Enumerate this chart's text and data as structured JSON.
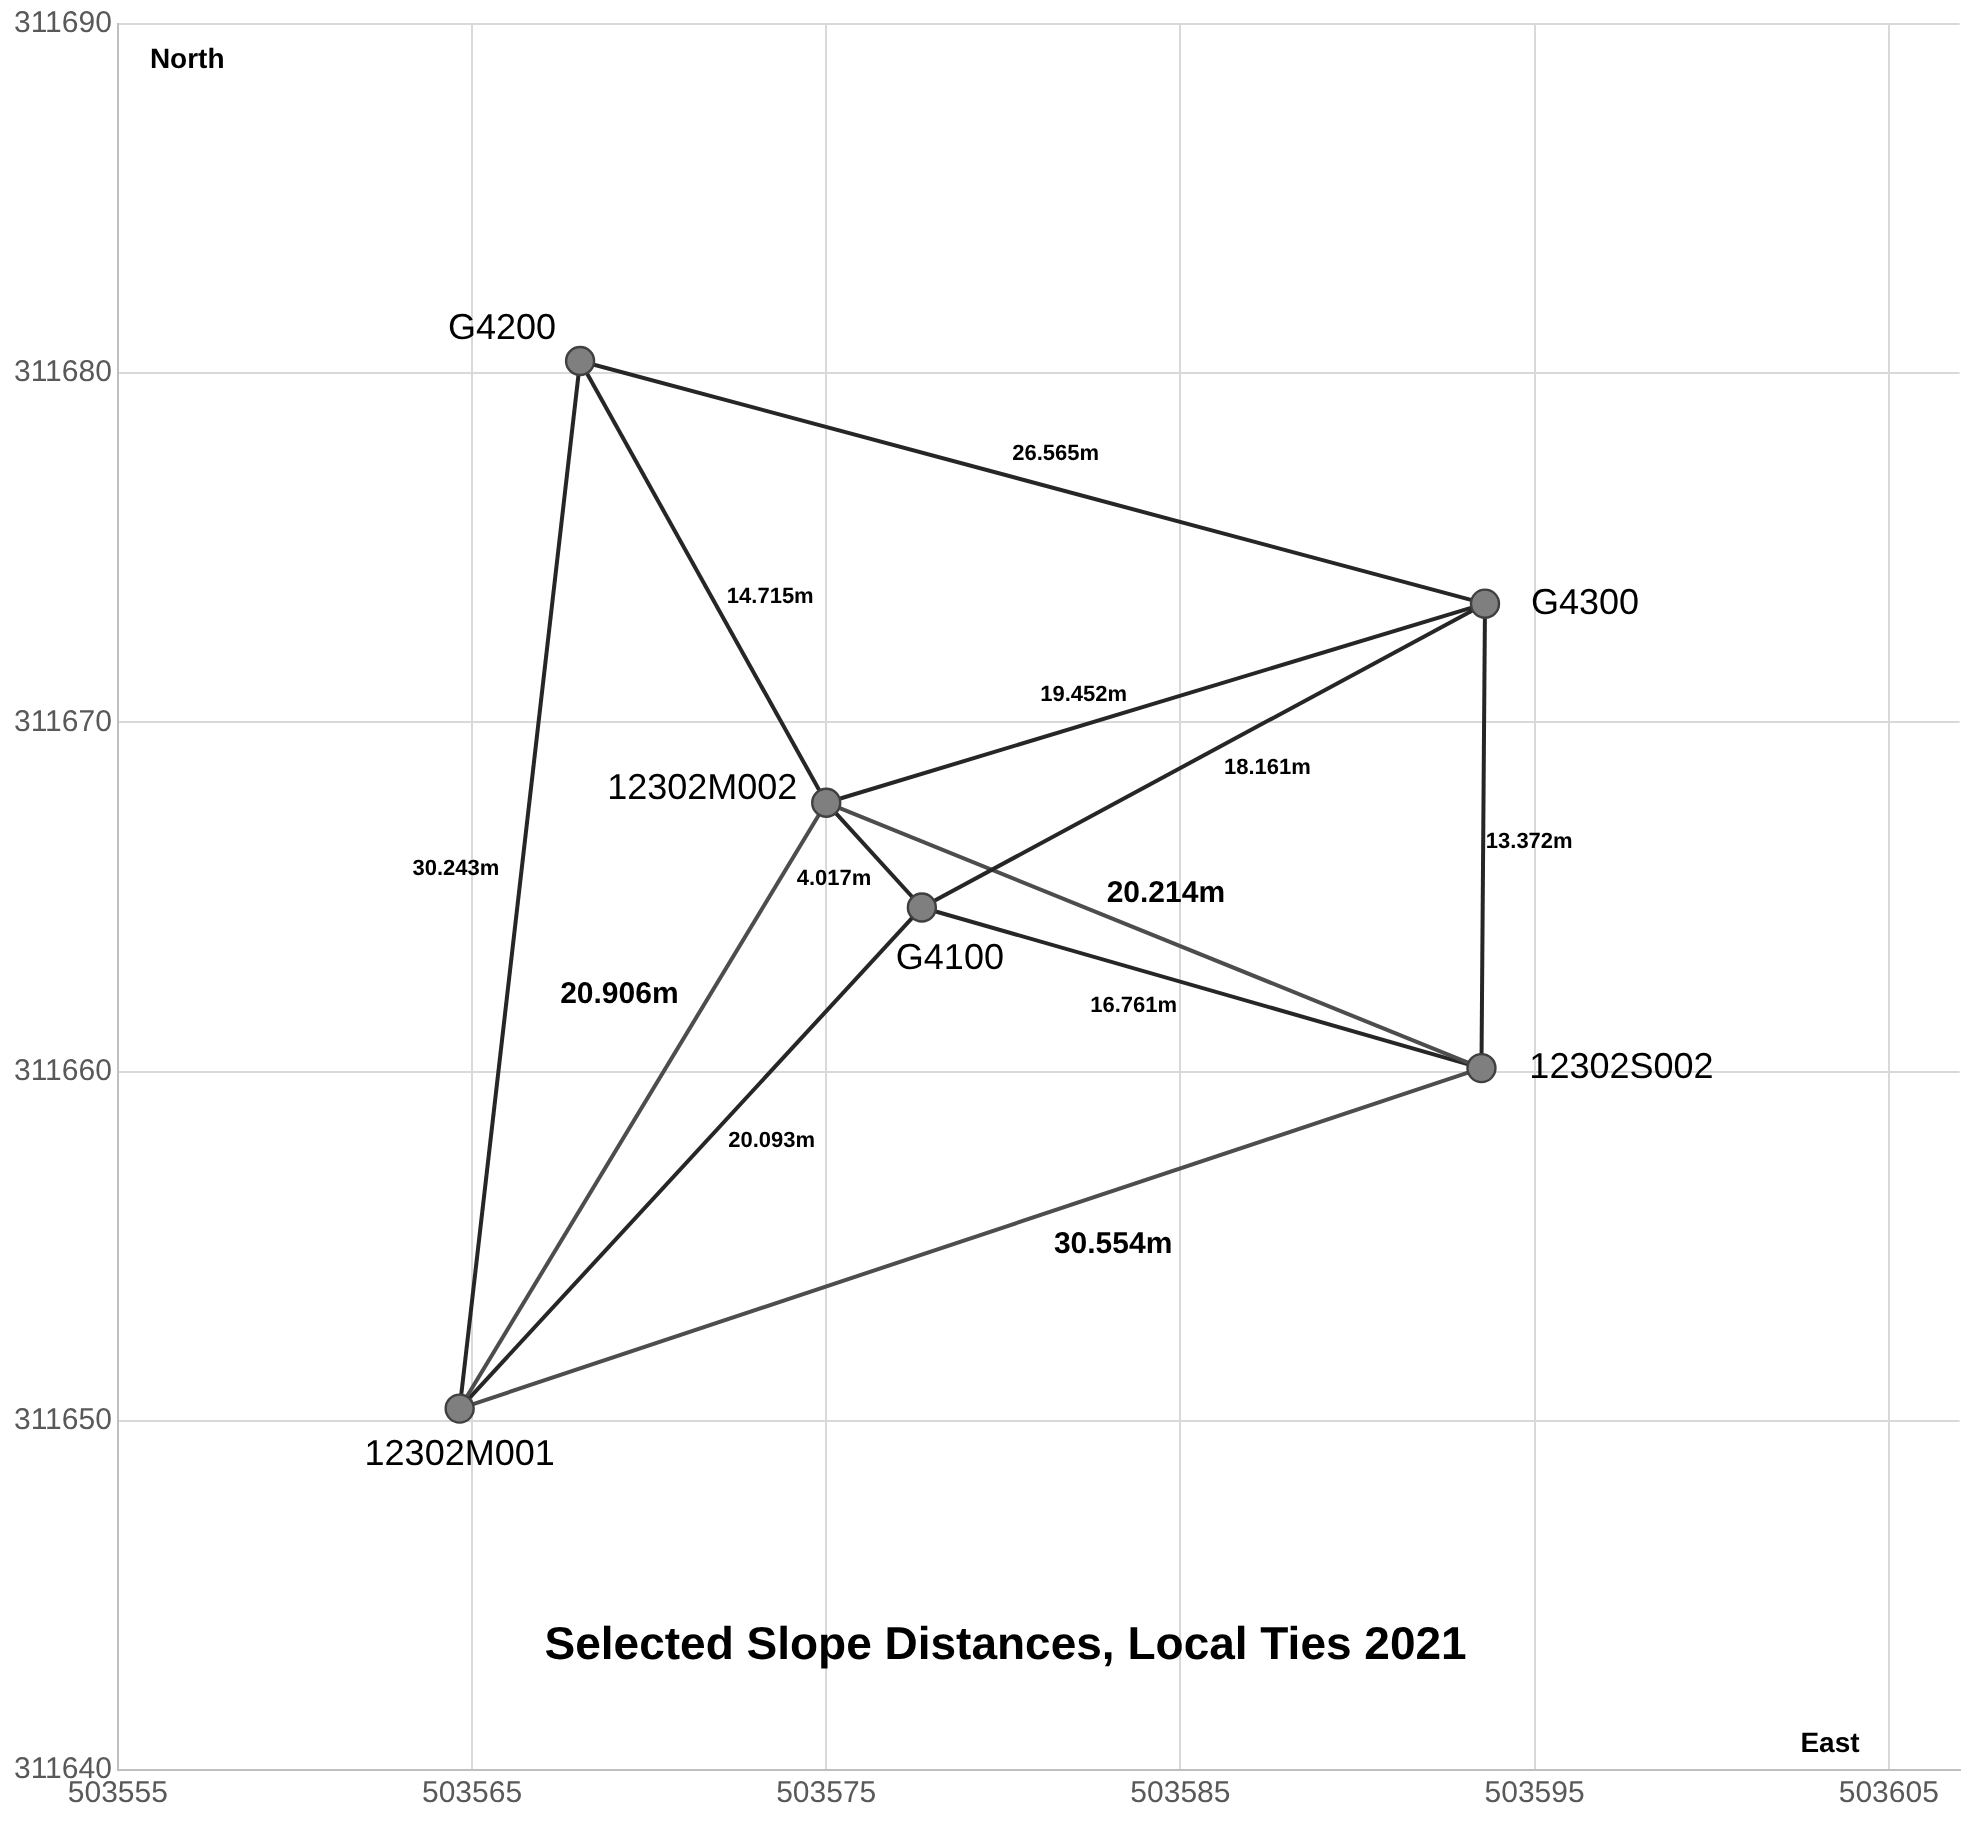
{
  "chart_data": {
    "type": "scatter",
    "title": "Selected Slope Distances, Local Ties 2021",
    "xlabel": "East",
    "ylabel": "North",
    "xlim": [
      503555,
      503607
    ],
    "xticks": [
      503555,
      503565,
      503575,
      503585,
      503595,
      503605
    ],
    "ylim": [
      311640,
      311690
    ],
    "yticks": [
      311640,
      311650,
      311660,
      311670,
      311680,
      311690
    ],
    "grid": true,
    "marker": "circle",
    "series": [
      {
        "color": "#7f7f7f",
        "x": [
          503568.05,
          503593.6,
          503575.0,
          503577.7,
          503593.5,
          503564.65
        ],
        "values": [
          311680.35,
          311673.4,
          311667.7,
          311664.7,
          311660.1,
          311650.35
        ]
      },
      {
        "type": "line",
        "marker": "none",
        "color": "#262626",
        "x": [
          503568.05,
          503593.6
        ],
        "values": [
          311680.35,
          311673.4
        ]
      },
      {
        "type": "line",
        "marker": "none",
        "color": "#262626",
        "x": [
          503568.05,
          503575.0
        ],
        "values": [
          311680.35,
          311667.7
        ]
      },
      {
        "type": "line",
        "marker": "none",
        "color": "#262626",
        "x": [
          503568.05,
          503564.65
        ],
        "values": [
          311680.35,
          311650.35
        ]
      },
      {
        "type": "line",
        "marker": "none",
        "color": "#262626",
        "x": [
          503575.0,
          503593.6
        ],
        "values": [
          311667.7,
          311673.4
        ]
      },
      {
        "type": "line",
        "marker": "none",
        "color": "#262626",
        "x": [
          503577.7,
          503593.6
        ],
        "values": [
          311664.7,
          311673.4
        ]
      },
      {
        "type": "line",
        "marker": "none",
        "color": "#262626",
        "x": [
          503593.6,
          503593.5
        ],
        "values": [
          311673.4,
          311660.1
        ]
      },
      {
        "type": "line",
        "marker": "none",
        "color": "#262626",
        "x": [
          503575.0,
          503577.7
        ],
        "values": [
          311667.7,
          311664.7
        ]
      },
      {
        "type": "line",
        "marker": "none",
        "color": "#4d4d4d",
        "x": [
          503575.0,
          503593.5
        ],
        "values": [
          311667.7,
          311660.1
        ]
      },
      {
        "type": "line",
        "marker": "none",
        "color": "#262626",
        "x": [
          503577.7,
          503593.5
        ],
        "values": [
          311664.7,
          311660.1
        ]
      },
      {
        "type": "line",
        "marker": "none",
        "color": "#4d4d4d",
        "x": [
          503575.0,
          503564.65
        ],
        "values": [
          311667.7,
          311650.35
        ]
      },
      {
        "type": "line",
        "marker": "none",
        "color": "#262626",
        "x": [
          503577.7,
          503564.65
        ],
        "values": [
          311664.7,
          311650.35
        ]
      },
      {
        "type": "line",
        "marker": "none",
        "color": "#4d4d4d",
        "x": [
          503564.65,
          503593.5
        ],
        "values": [
          311650.35,
          311660.1
        ]
      }
    ],
    "annotations": [
      {
        "text": "G4200",
        "x": 503568.05,
        "y": 311680.35
      },
      {
        "text": "G4300",
        "x": 503593.6,
        "y": 311673.4
      },
      {
        "text": "12302M002",
        "x": 503575.0,
        "y": 311667.7
      },
      {
        "text": "G4100",
        "x": 503577.7,
        "y": 311664.7
      },
      {
        "text": "12302S002",
        "x": 503593.5,
        "y": 311660.1
      },
      {
        "text": "12302M001",
        "x": 503564.65,
        "y": 311650.35
      },
      {
        "text": "26.565m",
        "x": 503580.8,
        "y": 311676.9
      },
      {
        "text": "14.715m",
        "x": 503571.5,
        "y": 311674.0
      },
      {
        "text": "30.243m",
        "x": 503566.35,
        "y": 311665.35
      },
      {
        "text": "19.452m",
        "x": 503584.3,
        "y": 311670.55
      },
      {
        "text": "18.161m",
        "x": 503585.65,
        "y": 311669.05
      },
      {
        "text": "13.372m",
        "x": 503593.55,
        "y": 311666.75
      },
      {
        "text": "4.017m",
        "x": 503576.35,
        "y": 311666.2
      },
      {
        "text": "20.214m",
        "x": 503584.25,
        "y": 311663.9
      },
      {
        "text": "16.761m",
        "x": 503585.6,
        "y": 311662.4
      },
      {
        "text": "20.906m",
        "x": 503571.7,
        "y": 311662.2
      },
      {
        "text": "20.093m",
        "x": 503571.2,
        "y": 311657.5
      },
      {
        "text": "30.554m",
        "x": 503583.1,
        "y": 311656.6
      }
    ]
  }
}
